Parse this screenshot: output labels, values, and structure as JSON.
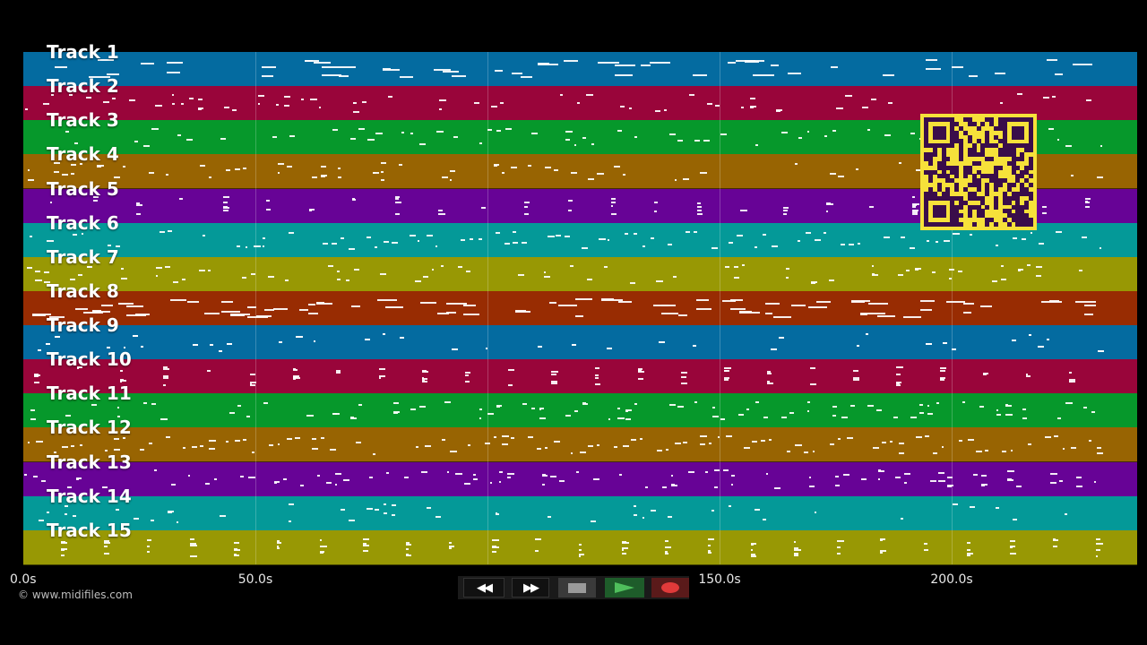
{
  "tracks": [
    {
      "label": "Track 1",
      "color": "#046ba0"
    },
    {
      "label": "Track 2",
      "color": "#99053a"
    },
    {
      "label": "Track 3",
      "color": "#06982b"
    },
    {
      "label": "Track 4",
      "color": "#986402"
    },
    {
      "label": "Track 5",
      "color": "#670396"
    },
    {
      "label": "Track 6",
      "color": "#049998"
    },
    {
      "label": "Track 7",
      "color": "#989804"
    },
    {
      "label": "Track 8",
      "color": "#982c02"
    },
    {
      "label": "Track 9",
      "color": "#046ba0"
    },
    {
      "label": "Track 10",
      "color": "#99053a"
    },
    {
      "label": "Track 11",
      "color": "#06982b"
    },
    {
      "label": "Track 12",
      "color": "#986402"
    },
    {
      "label": "Track 13",
      "color": "#670396"
    },
    {
      "label": "Track 14",
      "color": "#049998"
    },
    {
      "label": "Track 15",
      "color": "#989804"
    }
  ],
  "timeline": {
    "ticks": [
      "0.0s",
      "50.0s",
      "150.0s",
      "200.0s"
    ],
    "tick_seconds": [
      0,
      50,
      150,
      200
    ],
    "max_seconds": 240
  },
  "credit": "© www.midifiles.com",
  "qr_code": {
    "description_icon": "qr-code-icon",
    "color": "#f6e13a"
  },
  "transport": {
    "rewind_label": "◀◀",
    "fast_forward_label": "▶▶",
    "stop_icon": "stop-icon",
    "play_icon": "play-icon",
    "record_icon": "record-icon"
  }
}
